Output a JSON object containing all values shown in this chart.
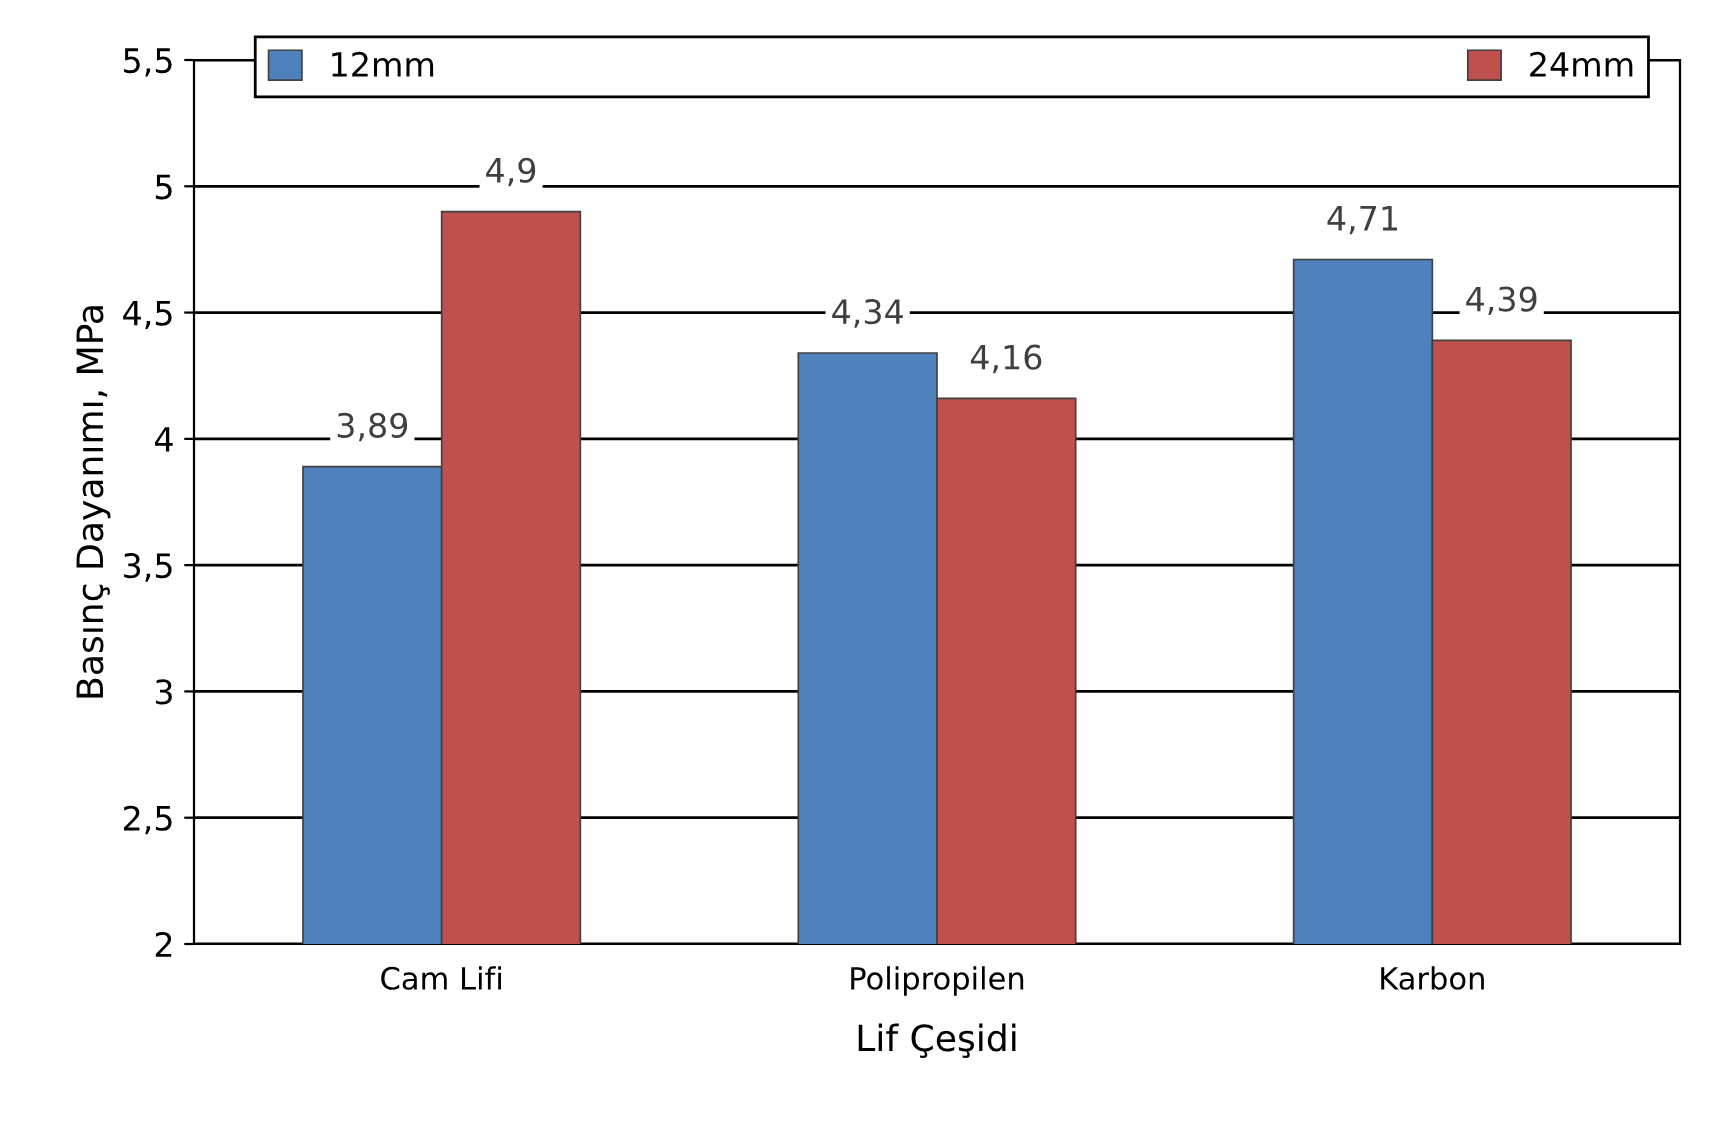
{
  "chart_data": {
    "type": "bar",
    "xlabel": "Lif Çeşidi",
    "ylabel": "Basınç Dayanımı, MPa",
    "categories": [
      "Cam Lifi",
      "Polipropilen",
      "Karbon"
    ],
    "series": [
      {
        "name": "12mm",
        "color": "#4f81bd",
        "values": [
          3.89,
          4.34,
          4.71
        ],
        "value_labels": [
          "3,89",
          "4,34",
          "4,71"
        ]
      },
      {
        "name": "24mm",
        "color": "#c0504d",
        "values": [
          4.9,
          4.16,
          4.39
        ],
        "value_labels": [
          "4,9",
          "4,16",
          "4,39"
        ]
      }
    ],
    "ylim": [
      2,
      5.5
    ],
    "yticks": [
      2,
      {
        "value": 2.5,
        "label": "2,5"
      },
      3,
      {
        "value": 3.5,
        "label": "3,5"
      },
      4,
      {
        "value": 4.5,
        "label": "4,5"
      },
      5,
      {
        "value": 5.5,
        "label": "5,5"
      }
    ],
    "grid": "y",
    "legend": "top"
  }
}
